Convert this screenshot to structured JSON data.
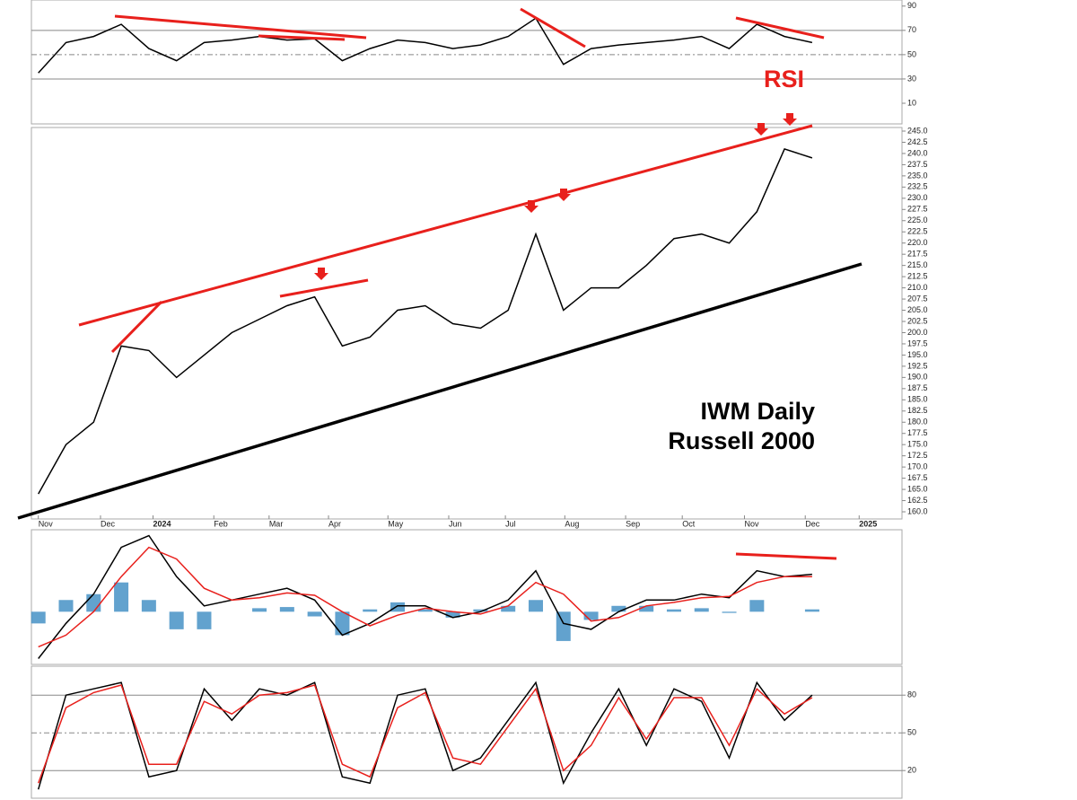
{
  "chart_data": [
    {
      "type": "line",
      "annotation": "RSI",
      "annotation_color": "#e8201c",
      "x": [
        0,
        2,
        4,
        6,
        8,
        10,
        12,
        14,
        16,
        18,
        20,
        22,
        24,
        26,
        28,
        30,
        32,
        34,
        36,
        38,
        40,
        42,
        44,
        46,
        48,
        50,
        52,
        54,
        56
      ],
      "xlim": [
        -0.5,
        62.5
      ],
      "ylim": [
        -7,
        95
      ],
      "yticks": [
        10,
        30,
        50,
        70,
        90
      ],
      "hlines": [
        30,
        50,
        70
      ],
      "series": [
        {
          "color": "#000000",
          "values": [
            35,
            60,
            65,
            75,
            55,
            45,
            60,
            62,
            65,
            62,
            63,
            45,
            55,
            62,
            60,
            55,
            58,
            65,
            80,
            42,
            55,
            58,
            60,
            62,
            65,
            55,
            75,
            65,
            60
          ]
        }
      ]
    },
    {
      "type": "line",
      "annotations": [
        "IWM Daily",
        "Russell 2000"
      ],
      "x": [
        0,
        2,
        4,
        6,
        8,
        10,
        12,
        14,
        16,
        18,
        20,
        22,
        24,
        26,
        28,
        30,
        32,
        34,
        36,
        38,
        40,
        42,
        44,
        46,
        48,
        50,
        52,
        54,
        56
      ],
      "xlim": [
        -0.5,
        62.5
      ],
      "ylim": [
        158.4,
        245.8
      ],
      "xticks": [
        {
          "value": 0,
          "label": "Nov"
        },
        {
          "value": 4.5,
          "label": "Dec"
        },
        {
          "value": 8.3,
          "label": "2024"
        },
        {
          "value": 12.7,
          "label": "Feb"
        },
        {
          "value": 16.7,
          "label": "Mar"
        },
        {
          "value": 21,
          "label": "Apr"
        },
        {
          "value": 25.3,
          "label": "May"
        },
        {
          "value": 29.7,
          "label": "Jun"
        },
        {
          "value": 33.8,
          "label": "Jul"
        },
        {
          "value": 38.1,
          "label": "Aug"
        },
        {
          "value": 42.5,
          "label": "Sep"
        },
        {
          "value": 46.6,
          "label": "Oct"
        },
        {
          "value": 51.1,
          "label": "Nov"
        },
        {
          "value": 55.5,
          "label": "Dec"
        },
        {
          "value": 59.4,
          "label": "2025"
        }
      ],
      "yticks": [
        {
          "value": 160,
          "label": "160.0"
        },
        {
          "value": 162.5,
          "label": "162.5"
        },
        {
          "value": 165,
          "label": "165.0"
        },
        {
          "value": 167.5,
          "label": "167.5"
        },
        {
          "value": 170,
          "label": "170.0"
        },
        {
          "value": 172.5,
          "label": "172.5"
        },
        {
          "value": 175,
          "label": "175.0"
        },
        {
          "value": 177.5,
          "label": "177.5"
        },
        {
          "value": 180,
          "label": "180.0"
        },
        {
          "value": 182.5,
          "label": "182.5"
        },
        {
          "value": 185,
          "label": "185.0"
        },
        {
          "value": 187.5,
          "label": "187.5"
        },
        {
          "value": 190,
          "label": "190.0"
        },
        {
          "value": 192.5,
          "label": "192.5"
        },
        {
          "value": 195,
          "label": "195.0"
        },
        {
          "value": 197.5,
          "label": "197.5"
        },
        {
          "value": 200,
          "label": "200.0"
        },
        {
          "value": 202.5,
          "label": "202.5"
        },
        {
          "value": 205,
          "label": "205.0"
        },
        {
          "value": 207.5,
          "label": "207.5"
        },
        {
          "value": 210,
          "label": "210.0"
        },
        {
          "value": 212.5,
          "label": "212.5"
        },
        {
          "value": 215,
          "label": "215.0"
        },
        {
          "value": 217.5,
          "label": "217.5"
        },
        {
          "value": 220,
          "label": "220.0"
        },
        {
          "value": 222.5,
          "label": "222.5"
        },
        {
          "value": 225,
          "label": "225.0"
        },
        {
          "value": 227.5,
          "label": "227.5"
        },
        {
          "value": 230,
          "label": "230.0"
        },
        {
          "value": 232.5,
          "label": "232.5"
        },
        {
          "value": 235,
          "label": "235.0"
        },
        {
          "value": 237.5,
          "label": "237.5"
        },
        {
          "value": 240,
          "label": "240.0"
        },
        {
          "value": 242.5,
          "label": "242.5"
        },
        {
          "value": 245,
          "label": "245.0"
        }
      ],
      "series": [
        {
          "color": "#000000",
          "values": [
            164,
            175,
            180,
            197,
            196,
            190,
            195,
            200,
            203,
            206,
            208,
            197,
            199,
            205,
            206,
            202,
            201,
            205,
            222,
            205,
            210,
            210,
            215,
            221,
            222,
            220,
            227,
            241,
            239
          ]
        }
      ]
    },
    {
      "type": "line",
      "x": [
        0,
        2,
        4,
        6,
        8,
        10,
        12,
        14,
        16,
        18,
        20,
        22,
        24,
        26,
        28,
        30,
        32,
        34,
        36,
        38,
        40,
        42,
        44,
        46,
        48,
        50,
        52,
        54,
        56
      ],
      "xlim": [
        -0.5,
        62.5
      ],
      "ylim": [
        -4.5,
        7
      ],
      "series": [
        {
          "type": "bar",
          "color": "#3b8bc2",
          "values": [
            -1,
            1,
            1.5,
            2.5,
            1,
            -1.5,
            -1.5,
            0,
            0.3,
            0.4,
            -0.4,
            -2,
            0.2,
            0.8,
            0.2,
            -0.5,
            0.2,
            0.5,
            1,
            -2.5,
            -0.7,
            0.5,
            0.5,
            0.2,
            0.3,
            -0.1,
            1,
            0,
            0.2
          ]
        },
        {
          "color": "#000000",
          "values": [
            -4,
            -1,
            1.5,
            5.5,
            6.5,
            3,
            0.5,
            1,
            1.5,
            2,
            1,
            -2,
            -1,
            0.5,
            0.5,
            -0.5,
            0,
            1,
            3.5,
            -1,
            -1.5,
            0,
            1,
            1,
            1.5,
            1.2,
            3.5,
            3,
            3.2
          ]
        },
        {
          "color": "#e8201c",
          "values": [
            -3,
            -2,
            0,
            3,
            5.5,
            4.5,
            2,
            1,
            1.2,
            1.6,
            1.4,
            0,
            -1.2,
            -0.3,
            0.3,
            0,
            -0.2,
            0.5,
            2.5,
            1.5,
            -0.8,
            -0.5,
            0.5,
            0.8,
            1.2,
            1.3,
            2.5,
            3,
            3
          ]
        }
      ]
    },
    {
      "type": "line",
      "x": [
        0,
        2,
        4,
        6,
        8,
        10,
        12,
        14,
        16,
        18,
        20,
        22,
        24,
        26,
        28,
        30,
        32,
        34,
        36,
        38,
        40,
        42,
        44,
        46,
        48,
        50,
        52,
        54,
        56
      ],
      "xlim": [
        -0.5,
        62.5
      ],
      "ylim": [
        -2,
        103
      ],
      "yticks": [
        20,
        50,
        80
      ],
      "hlines": [
        20,
        50,
        80
      ],
      "series": [
        {
          "color": "#000000",
          "values": [
            5,
            80,
            85,
            90,
            15,
            20,
            85,
            60,
            85,
            80,
            90,
            15,
            10,
            80,
            85,
            20,
            30,
            60,
            90,
            10,
            50,
            85,
            40,
            85,
            75,
            30,
            90,
            60,
            80
          ]
        },
        {
          "color": "#e8201c",
          "values": [
            10,
            70,
            82,
            88,
            25,
            25,
            75,
            65,
            80,
            82,
            88,
            25,
            15,
            70,
            82,
            30,
            25,
            55,
            85,
            20,
            40,
            78,
            45,
            78,
            78,
            40,
            85,
            65,
            78
          ]
        }
      ]
    }
  ]
}
